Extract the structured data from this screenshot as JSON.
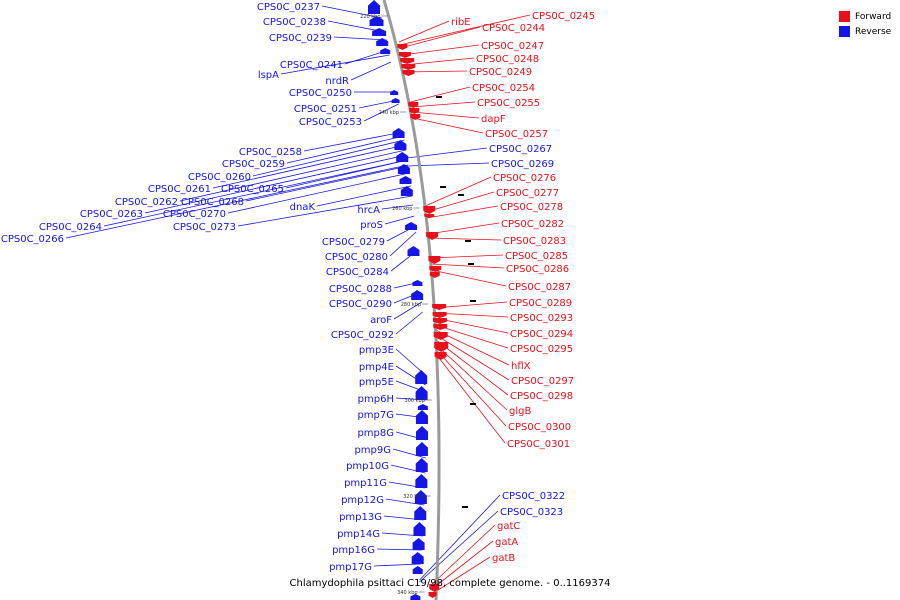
{
  "map": {
    "caption": "Chlamydophila psittaci C19/98, complete genome. - 0..1169374",
    "colors": {
      "forward": "#e8101a",
      "reverse": "#1515e6",
      "backbone": "#9a9a9a",
      "leader": "#1515e6"
    },
    "legend": [
      {
        "label": "Forward",
        "color": "#e8101a"
      },
      {
        "label": "Reverse",
        "color": "#1515e6"
      }
    ],
    "ticks": [
      {
        "kbp": 220,
        "label": "220 kbp"
      },
      {
        "kbp": 240,
        "label": "240 kbp"
      },
      {
        "kbp": 260,
        "label": "260 kbp"
      },
      {
        "kbp": 280,
        "label": "280 kbp"
      },
      {
        "kbp": 300,
        "label": "300 kbp"
      },
      {
        "kbp": 320,
        "label": "320 kbp"
      },
      {
        "kbp": 340,
        "label": "340 kbp"
      }
    ],
    "reverse_genes": [
      "CPS0C_0237",
      "CPS0C_0238",
      "CPS0C_0239",
      "CPS0C_0241",
      "lspA",
      "nrdR",
      "CPS0C_0250",
      "CPS0C_0251",
      "CPS0C_0253",
      "CPS0C_0258",
      "CPS0C_0259",
      "CPS0C_0260",
      "CPS0C_0261",
      "CPS0C_0265",
      "CPS0C_0262",
      "CPS0C_0268",
      "CPS0C_0263",
      "CPS0C_0270",
      "dnaK",
      "CPS0C_0264",
      "CPS0C_0273",
      "CPS0C_0266",
      "hrcA",
      "proS",
      "CPS0C_0279",
      "CPS0C_0280",
      "CPS0C_0284",
      "CPS0C_0288",
      "CPS0C_0290",
      "aroF",
      "CPS0C_0292",
      "pmp3E",
      "pmp4E",
      "pmp5E",
      "pmp6H",
      "pmp7G",
      "pmp8G",
      "pmp9G",
      "pmp10G",
      "pmp11G",
      "pmp12G",
      "pmp13G",
      "pmp14G",
      "pmp16G",
      "pmp17G",
      "CPS0C_0267",
      "CPS0C_0269",
      "CPS0C_0322",
      "CPS0C_0323"
    ],
    "forward_genes": [
      "ribE",
      "CPS0C_0245",
      "CPS0C_0244",
      "CPS0C_0247",
      "CPS0C_0248",
      "CPS0C_0249",
      "CPS0C_0254",
      "CPS0C_0255",
      "dapF",
      "CPS0C_0257",
      "CPS0C_0276",
      "CPS0C_0277",
      "CPS0C_0278",
      "CPS0C_0282",
      "CPS0C_0283",
      "CPS0C_0285",
      "CPS0C_0286",
      "CPS0C_0287",
      "CPS0C_0289",
      "CPS0C_0293",
      "CPS0C_0294",
      "CPS0C_0295",
      "hflX",
      "CPS0C_0297",
      "CPS0C_0298",
      "glgB",
      "CPS0C_0300",
      "CPS0C_0301",
      "gatC",
      "gatA",
      "gatB"
    ]
  }
}
